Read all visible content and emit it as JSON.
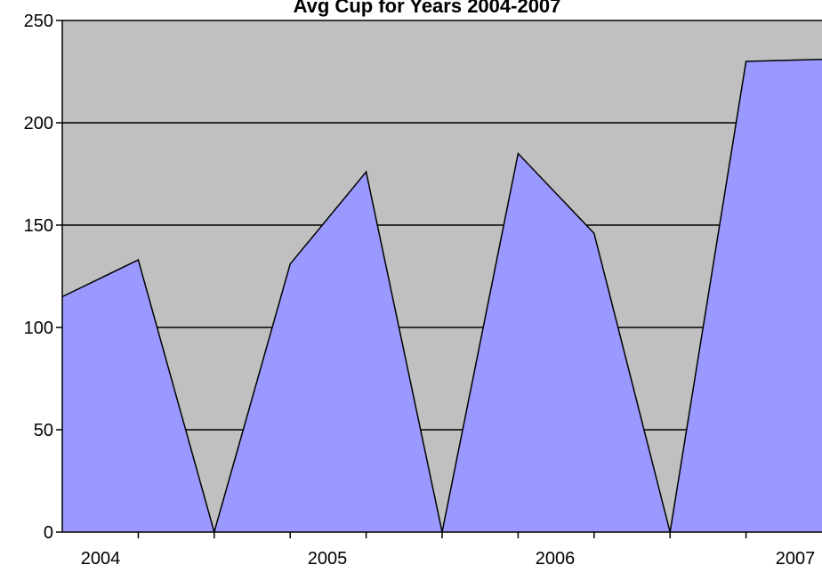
{
  "chart_data": {
    "type": "area",
    "title": "Avg Cup for Years 2004-2007",
    "xlabel": "",
    "ylabel": "",
    "ylim": [
      0,
      250
    ],
    "yticks": [
      0,
      50,
      100,
      150,
      200,
      250
    ],
    "x_tick_labels": [
      "2004",
      "2005",
      "2006",
      "2007"
    ],
    "grid": true,
    "series": [
      {
        "values": [
          115,
          133,
          0,
          131,
          176,
          0,
          185,
          146,
          0,
          230,
          231
        ]
      }
    ]
  },
  "colors": {
    "plot_background": "#c0c0c0",
    "area_fill": "#9999ff",
    "outline": "#000000",
    "gridline": "#000000"
  }
}
